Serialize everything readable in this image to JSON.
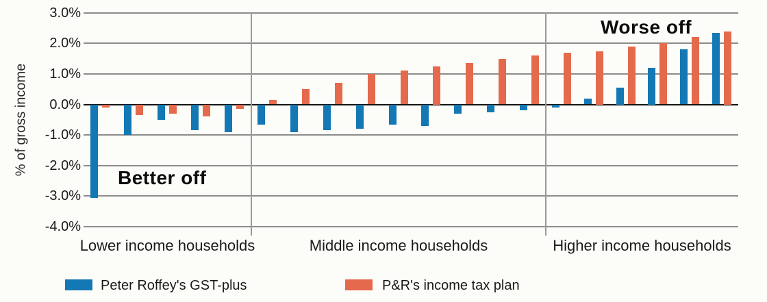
{
  "chart_data": {
    "type": "bar",
    "title": "",
    "xlabel": "",
    "ylabel": "% of gross income",
    "ylim": [
      -4.0,
      3.0
    ],
    "grid": true,
    "legend_position": "bottom",
    "yticks": [
      {
        "value": 3,
        "label": "3.0%"
      },
      {
        "value": 2,
        "label": "2.0%"
      },
      {
        "value": 1,
        "label": "1.0%"
      },
      {
        "value": 0,
        "label": "0.0%"
      },
      {
        "value": -1,
        "label": "-1.0%"
      },
      {
        "value": -2,
        "label": "-2.0%"
      },
      {
        "value": -3,
        "label": "-3.0%"
      },
      {
        "value": -4,
        "label": "-4.0%"
      }
    ],
    "groups": [
      {
        "label": "Lower income households",
        "count": 5
      },
      {
        "label": "Middle income households",
        "count": 9
      },
      {
        "label": "Higher income households",
        "count": 6
      }
    ],
    "series": [
      {
        "name": "Peter Roffey's GST-plus",
        "color": "#1478b4",
        "values": [
          -3.05,
          -1.0,
          -0.5,
          -0.85,
          -0.9,
          -0.65,
          -0.9,
          -0.85,
          -0.8,
          -0.65,
          -0.7,
          -0.3,
          -0.25,
          -0.2,
          -0.1,
          0.2,
          0.55,
          1.2,
          1.8,
          2.35
        ]
      },
      {
        "name": "P&R's income tax plan",
        "color": "#e5694c",
        "values": [
          -0.1,
          -0.35,
          -0.3,
          -0.4,
          -0.15,
          0.15,
          0.5,
          0.7,
          1.0,
          1.1,
          1.25,
          1.35,
          1.5,
          1.6,
          1.7,
          1.75,
          1.9,
          2.0,
          2.2,
          2.4
        ]
      }
    ],
    "annotations": [
      {
        "text": "Better off"
      },
      {
        "text": "Worse off"
      }
    ]
  },
  "colors": {
    "background": "#fcfcf8",
    "gridline": "#8c8c8c",
    "zero_line": "#141414",
    "divider": "#9a9a9a",
    "text": "#1a1a1a",
    "series_blue": "#1478b4",
    "series_orange": "#e5694c"
  }
}
